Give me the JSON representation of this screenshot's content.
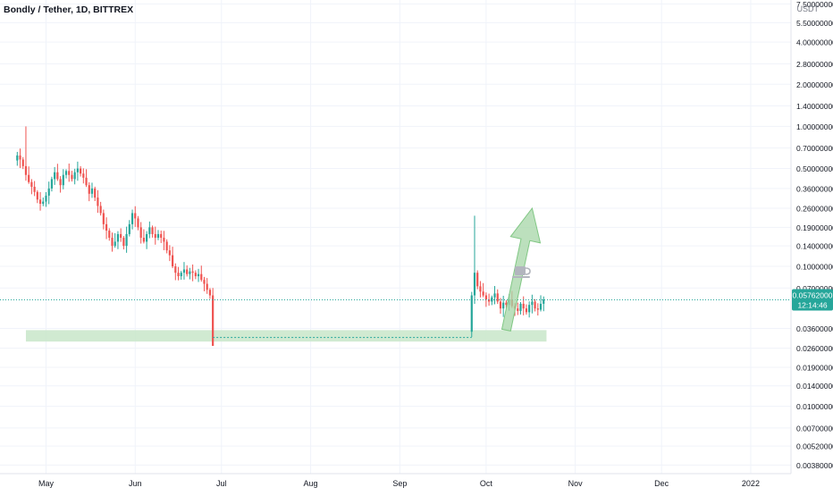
{
  "header": {
    "title": "Bondly / Tether, 1D, BITTREX"
  },
  "price_scale": {
    "currency": "USDT",
    "labels": [
      "7.50000000",
      "5.50000000",
      "4.00000000",
      "2.80000000",
      "2.00000000",
      "1.40000000",
      "1.00000000",
      "0.70000000",
      "0.50000000",
      "0.36000000",
      "0.26000000",
      "0.19000000",
      "0.14000000",
      "0.10000000",
      "0.07000000",
      "0.03600000",
      "0.02600000",
      "0.01900000",
      "0.01400000",
      "0.01000000",
      "0.00700000",
      "0.00520000",
      "0.00380000"
    ],
    "scale": "log",
    "current_price": "0.05762000",
    "countdown": "12:14:46"
  },
  "time_axis": {
    "labels": [
      "May",
      "Jun",
      "Jul",
      "Aug",
      "Sep",
      "Oct",
      "Nov",
      "Dec",
      "2022"
    ]
  },
  "colors": {
    "up": "#26a69a",
    "down": "#ef5350",
    "zone": "#c8e6c9",
    "arrow": "#a5d6a7",
    "grid": "#f0f3fa",
    "price_line": "#26a69a"
  },
  "annotations": {
    "support_zone": "green rectangle",
    "projection": "upward arrow",
    "coffee_icon": "coffee-cup-icon"
  },
  "chart_data": {
    "type": "candlestick",
    "title": "Bondly / Tether, 1D, BITTREX",
    "y_scale": "log",
    "ylim": [
      0.0033,
      8.0
    ],
    "xlim": [
      "2021-04-15",
      "2022-01-15"
    ],
    "x_ticks": [
      "2021-05-01",
      "2021-06-01",
      "2021-07-01",
      "2021-08-01",
      "2021-09-01",
      "2021-10-01",
      "2021-11-01",
      "2021-12-01",
      "2022-01-01"
    ],
    "support_zone": {
      "from": "2021-04-24",
      "to": "2021-10-22",
      "low": 0.029,
      "high": 0.035
    },
    "arrow": {
      "from": [
        "2021-10-08",
        0.035
      ],
      "to": [
        "2021-10-17",
        0.26
      ]
    },
    "current_price": 0.05762,
    "series": [
      {
        "segment": 1,
        "start": "2021-04-21",
        "close": [
          0.62,
          0.58,
          0.52,
          0.45,
          0.4,
          0.37,
          0.34,
          0.3,
          0.28,
          0.29,
          0.32,
          0.36,
          0.42,
          0.47,
          0.42,
          0.38,
          0.45,
          0.48,
          0.45,
          0.42,
          0.47,
          0.5,
          0.46,
          0.43,
          0.38,
          0.33,
          0.36,
          0.31,
          0.27,
          0.24,
          0.2,
          0.18,
          0.16,
          0.14,
          0.15,
          0.17,
          0.16,
          0.14,
          0.17,
          0.2,
          0.24,
          0.22,
          0.19,
          0.16,
          0.15,
          0.17,
          0.19,
          0.17,
          0.16,
          0.17,
          0.16,
          0.15,
          0.13,
          0.12,
          0.1,
          0.09,
          0.085,
          0.09,
          0.095,
          0.088,
          0.092,
          0.09,
          0.085,
          0.088,
          0.08,
          0.075,
          0.068,
          0.062,
          0.027
        ]
      },
      {
        "segment": 2,
        "start": "2021-09-26",
        "close": [
          0.062,
          0.09,
          0.072,
          0.066,
          0.062,
          0.058,
          0.056,
          0.06,
          0.064,
          0.056,
          0.05,
          0.055,
          0.053,
          0.058,
          0.052,
          0.05,
          0.048,
          0.054,
          0.05,
          0.047,
          0.053,
          0.056,
          0.05,
          0.049,
          0.054,
          0.058
        ]
      }
    ]
  }
}
